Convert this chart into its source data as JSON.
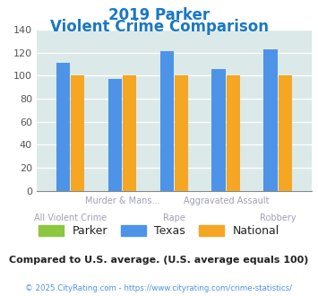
{
  "title_line1": "2019 Parker",
  "title_line2": "Violent Crime Comparison",
  "categories": [
    "All Violent Crime",
    "Murder & Mans...",
    "Rape",
    "Aggravated Assault",
    "Robbery"
  ],
  "top_labels": [
    "",
    "Murder & Mans...",
    "",
    "Aggravated Assault",
    ""
  ],
  "bottom_labels": [
    "All Violent Crime",
    "",
    "Rape",
    "",
    "Robbery"
  ],
  "parker": [
    0,
    0,
    0,
    0,
    0
  ],
  "texas": [
    111,
    97,
    121,
    106,
    123
  ],
  "national": [
    100,
    100,
    100,
    100,
    100
  ],
  "parker_color": "#8dc63f",
  "texas_color": "#4d94e8",
  "national_color": "#f5a623",
  "bg_color": "#dce9e9",
  "ylim": [
    0,
    140
  ],
  "yticks": [
    0,
    20,
    40,
    60,
    80,
    100,
    120,
    140
  ],
  "title_color": "#1a78c2",
  "label_color": "#a0a0b8",
  "note_text": "Compared to U.S. average. (U.S. average equals 100)",
  "note_color": "#222222",
  "copyright_text": "© 2025 CityRating.com - https://www.cityrating.com/crime-statistics/",
  "copyright_color": "#4d94e8"
}
